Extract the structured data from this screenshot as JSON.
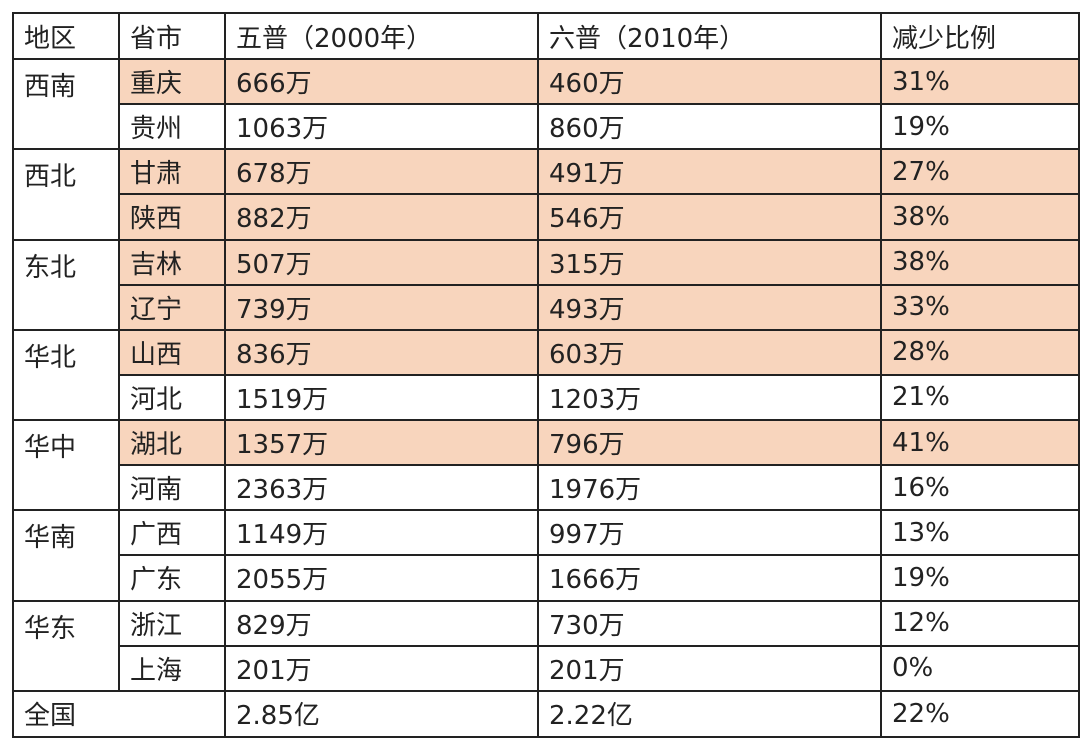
{
  "headers": [
    "地区",
    "省市",
    "五普（2000年）",
    "六普（2010年）",
    "减少比例"
  ],
  "regions": [
    {
      "name": "西南",
      "rows": [
        {
          "province": "重庆",
          "p2000": "666万",
          "p2010": "460万",
          "ratio": "31%",
          "highlight": true
        },
        {
          "province": "贵州",
          "p2000": "1063万",
          "p2010": "860万",
          "ratio": "19%",
          "highlight": false
        }
      ]
    },
    {
      "name": "西北",
      "rows": [
        {
          "province": "甘肃",
          "p2000": "678万",
          "p2010": "491万",
          "ratio": "27%",
          "highlight": true
        },
        {
          "province": "陕西",
          "p2000": "882万",
          "p2010": "546万",
          "ratio": "38%",
          "highlight": true
        }
      ]
    },
    {
      "name": "东北",
      "rows": [
        {
          "province": "吉林",
          "p2000": "507万",
          "p2010": "315万",
          "ratio": "38%",
          "highlight": true
        },
        {
          "province": "辽宁",
          "p2000": "739万",
          "p2010": "493万",
          "ratio": "33%",
          "highlight": true
        }
      ]
    },
    {
      "name": "华北",
      "rows": [
        {
          "province": "山西",
          "p2000": "836万",
          "p2010": "603万",
          "ratio": "28%",
          "highlight": true
        },
        {
          "province": "河北",
          "p2000": "1519万",
          "p2010": "1203万",
          "ratio": "21%",
          "highlight": false
        }
      ]
    },
    {
      "name": "华中",
      "rows": [
        {
          "province": "湖北",
          "p2000": "1357万",
          "p2010": "796万",
          "ratio": "41%",
          "highlight": true
        },
        {
          "province": "河南",
          "p2000": "2363万",
          "p2010": "1976万",
          "ratio": "16%",
          "highlight": false
        }
      ]
    },
    {
      "name": "华南",
      "rows": [
        {
          "province": "广西",
          "p2000": "1149万",
          "p2010": "997万",
          "ratio": "13%",
          "highlight": false
        },
        {
          "province": "广东",
          "p2000": "2055万",
          "p2010": "1666万",
          "ratio": "19%",
          "highlight": false
        }
      ]
    },
    {
      "name": "华东",
      "rows": [
        {
          "province": "浙江",
          "p2000": "829万",
          "p2010": "730万",
          "ratio": "12%",
          "highlight": false
        },
        {
          "province": "上海",
          "p2000": "201万",
          "p2010": "201万",
          "ratio": "0%",
          "highlight": false
        }
      ]
    }
  ],
  "total": {
    "label": "全国",
    "p2000": "2.85亿",
    "p2010": "2.22亿",
    "ratio": "22%"
  },
  "colors": {
    "highlight": "#f8d5bd",
    "border": "#222222",
    "text": "#222222"
  }
}
